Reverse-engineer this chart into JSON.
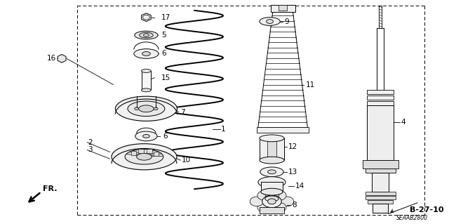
{
  "bg_color": "#ffffff",
  "line_color": "#000000",
  "fig_width": 6.4,
  "fig_height": 3.19,
  "dpi": 100,
  "title_code": "B-27-10",
  "part_number": "SEAAB2800"
}
